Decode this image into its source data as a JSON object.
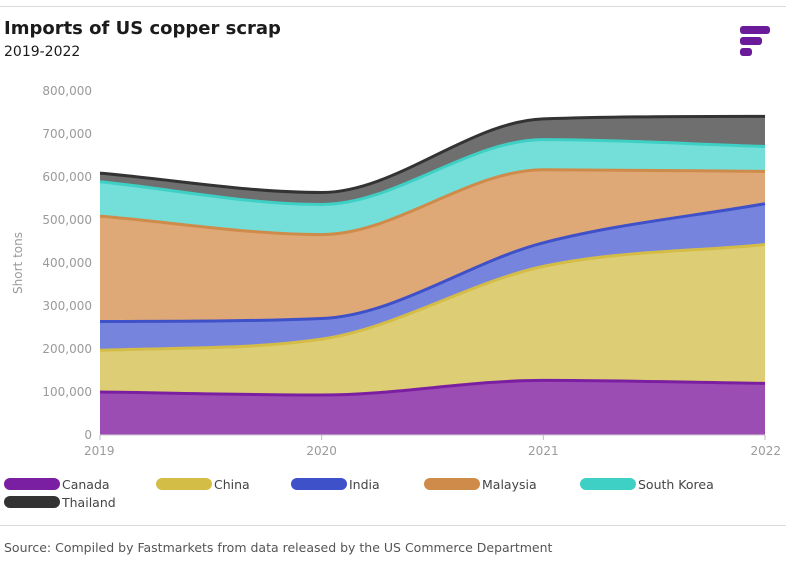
{
  "header": {
    "title": "Imports of US copper scrap",
    "subtitle": "2019-2022"
  },
  "logo": {
    "name": "fastmarkets-logo",
    "color": "#6a1b9a"
  },
  "chart_data": {
    "type": "area",
    "stacked": true,
    "x": [
      "2019",
      "2020",
      "2021",
      "2022"
    ],
    "ylabel": "Short tons",
    "xlabel": "",
    "ylim": [
      0,
      800000
    ],
    "yticks": [
      "0",
      "100,000",
      "200,000",
      "300,000",
      "400,000",
      "500,000",
      "600,000",
      "700,000",
      "800,000"
    ],
    "legend_position": "bottom",
    "grid": false,
    "series": [
      {
        "name": "Canada",
        "values": [
          100000,
          93000,
          127000,
          120000
        ],
        "color": "#7b1fa2",
        "fill": "#9c4db4"
      },
      {
        "name": "China",
        "values": [
          97000,
          130000,
          265000,
          323000
        ],
        "color": "#d4bd47",
        "fill": "#ddcd74"
      },
      {
        "name": "India",
        "values": [
          67000,
          48000,
          55000,
          95000
        ],
        "color": "#3f51c8",
        "fill": "#7784dd"
      },
      {
        "name": "Malaysia",
        "values": [
          245000,
          195000,
          170000,
          75000
        ],
        "color": "#cf8b4a",
        "fill": "#dfa877"
      },
      {
        "name": "South Korea",
        "values": [
          80000,
          70000,
          70000,
          58000
        ],
        "color": "#3ed0c5",
        "fill": "#74dfd8"
      },
      {
        "name": "Thailand",
        "values": [
          20000,
          28000,
          48000,
          70000
        ],
        "color": "#333333",
        "fill": "#6f6f6f"
      }
    ]
  },
  "footer": {
    "source": "Source: Compiled by Fastmarkets from data released by the US Commerce Department"
  }
}
